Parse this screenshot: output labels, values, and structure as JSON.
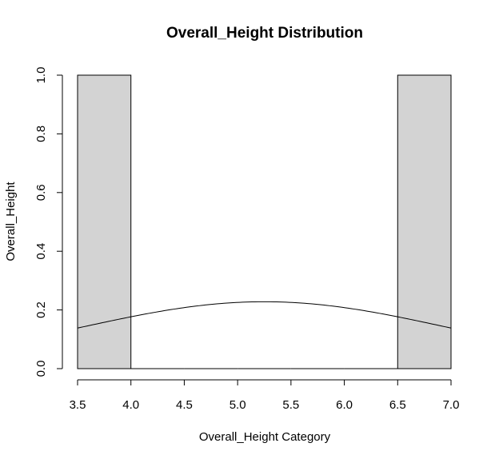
{
  "chart_data": {
    "type": "histogram",
    "title": "Overall_Height Distribution",
    "xlabel": "Overall_Height Category",
    "ylabel": "Overall_Height",
    "xlim": [
      3.5,
      7.0
    ],
    "ylim": [
      0,
      1.0
    ],
    "x_ticks": [
      "3.5",
      "4.0",
      "4.5",
      "5.0",
      "5.5",
      "6.0",
      "6.5",
      "7.0"
    ],
    "y_ticks": [
      "0.0",
      "0.2",
      "0.4",
      "0.6",
      "0.8",
      "1.0"
    ],
    "bins": [
      {
        "x0": 3.5,
        "x1": 4.0,
        "density": 1.0
      },
      {
        "x0": 4.0,
        "x1": 4.5,
        "density": 0.0
      },
      {
        "x0": 4.5,
        "x1": 5.0,
        "density": 0.0
      },
      {
        "x0": 5.0,
        "x1": 5.5,
        "density": 0.0
      },
      {
        "x0": 5.5,
        "x1": 6.0,
        "density": 0.0
      },
      {
        "x0": 6.0,
        "x1": 6.5,
        "density": 0.0
      },
      {
        "x0": 6.5,
        "x1": 7.0,
        "density": 1.0
      }
    ],
    "bar_color": "#d3d3d3",
    "bar_border": "#000000",
    "curve": {
      "type": "normal-density",
      "mean": 5.25,
      "sd": 1.75,
      "color": "#000000"
    },
    "grid": false,
    "legend": "none"
  }
}
